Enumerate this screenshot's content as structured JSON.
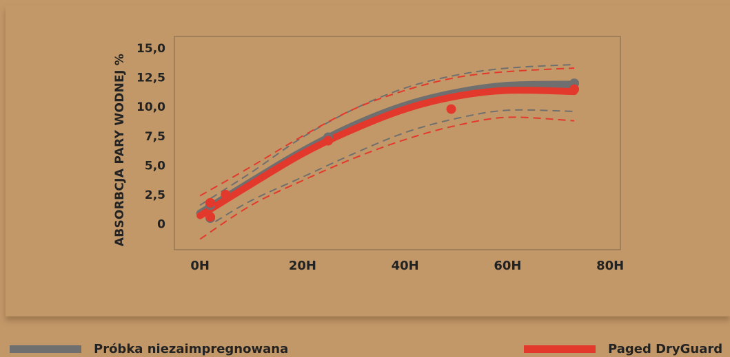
{
  "chart_data": {
    "type": "line",
    "ylabel": "ABSORBCJA PARY WODNEJ %",
    "xlabel": "",
    "x_ticks": [
      {
        "value": 0,
        "label": "0H"
      },
      {
        "value": 20,
        "label": "20H"
      },
      {
        "value": 40,
        "label": "40H"
      },
      {
        "value": 60,
        "label": "60H"
      },
      {
        "value": 80,
        "label": "80H"
      }
    ],
    "y_ticks": [
      {
        "value": 0,
        "label": "0"
      },
      {
        "value": 2.5,
        "label": "2,5"
      },
      {
        "value": 5,
        "label": "5,0"
      },
      {
        "value": 7.5,
        "label": "7,5"
      },
      {
        "value": 10,
        "label": "10,0"
      },
      {
        "value": 12.5,
        "label": "12,5"
      },
      {
        "value": 15,
        "label": "15,0"
      }
    ],
    "xlim": [
      -5,
      82
    ],
    "ylim": [
      -2.2,
      16
    ],
    "grid": false,
    "series": [
      {
        "name": "Próbka niezaimpregnowana",
        "color": "#6f6f6f",
        "points": {
          "x": [
            2,
            2,
            5,
            25,
            73
          ],
          "y": [
            1.6,
            0.5,
            2.5,
            7.4,
            12.0
          ]
        },
        "fit": {
          "x": [
            0,
            10,
            20,
            30,
            40,
            50,
            60,
            73
          ],
          "y": [
            0.9,
            3.6,
            6.2,
            8.4,
            10.1,
            11.2,
            11.8,
            11.9
          ]
        },
        "ci_upper": {
          "x": [
            0,
            10,
            20,
            30,
            40,
            50,
            60,
            73
          ],
          "y": [
            1.6,
            4.4,
            7.4,
            9.8,
            11.6,
            12.7,
            13.3,
            13.6
          ]
        },
        "ci_lower": {
          "x": [
            3,
            10,
            20,
            30,
            40,
            50,
            60,
            73
          ],
          "y": [
            0.2,
            2.0,
            4.0,
            6.0,
            7.8,
            9.0,
            9.7,
            9.6
          ]
        }
      },
      {
        "name": "Paged DryGuard",
        "color": "#e3392c",
        "points": {
          "x": [
            2,
            2,
            5,
            25,
            49,
            73
          ],
          "y": [
            1.8,
            0.6,
            2.5,
            7.1,
            9.8,
            11.5
          ]
        },
        "fit": {
          "x": [
            0,
            10,
            20,
            30,
            40,
            50,
            60,
            73
          ],
          "y": [
            0.7,
            3.4,
            6.0,
            8.1,
            9.8,
            10.9,
            11.4,
            11.3
          ]
        },
        "ci_upper": {
          "x": [
            0,
            10,
            20,
            30,
            40,
            50,
            60,
            73
          ],
          "y": [
            2.4,
            4.9,
            7.5,
            9.8,
            11.4,
            12.5,
            13.0,
            13.3
          ]
        },
        "ci_lower": {
          "x": [
            0,
            10,
            20,
            30,
            40,
            50,
            60,
            73
          ],
          "y": [
            -1.3,
            1.6,
            3.7,
            5.6,
            7.2,
            8.4,
            9.1,
            8.8
          ]
        }
      }
    ]
  },
  "legend": [
    {
      "label": "Próbka niezaimpregnowana",
      "color": "#6f6f6f"
    },
    {
      "label": "Paged DryGuard",
      "color": "#e3392c"
    }
  ]
}
